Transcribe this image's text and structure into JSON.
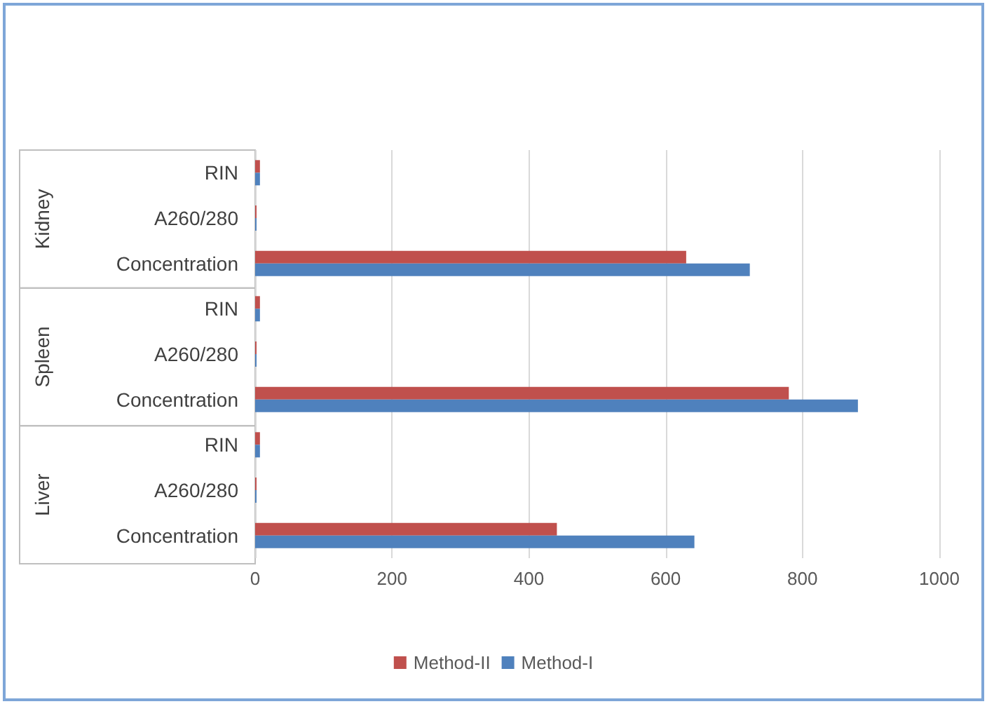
{
  "chart_data": {
    "type": "bar",
    "orientation": "horizontal",
    "categories": [
      "RIN",
      "A260/280",
      "Concentration",
      "RIN",
      "A260/280",
      "Concentration",
      "RIN",
      "A260/280",
      "Concentration"
    ],
    "series": [
      {
        "name": "Method-II",
        "color": "#c0504d",
        "values": [
          7,
          2,
          630,
          7,
          2,
          780,
          7,
          2,
          441
        ]
      },
      {
        "name": "Method-I",
        "color": "#4f81bd",
        "values": [
          7,
          2,
          723,
          7,
          2,
          881,
          7,
          2,
          642
        ]
      }
    ],
    "annotations": [
      "Kidney",
      "Spleen",
      "Liver"
    ],
    "xlim": [
      0,
      1000
    ],
    "xticks": [
      0,
      200,
      400,
      600,
      800,
      1000
    ],
    "grid": "x",
    "legend": "bottom"
  }
}
